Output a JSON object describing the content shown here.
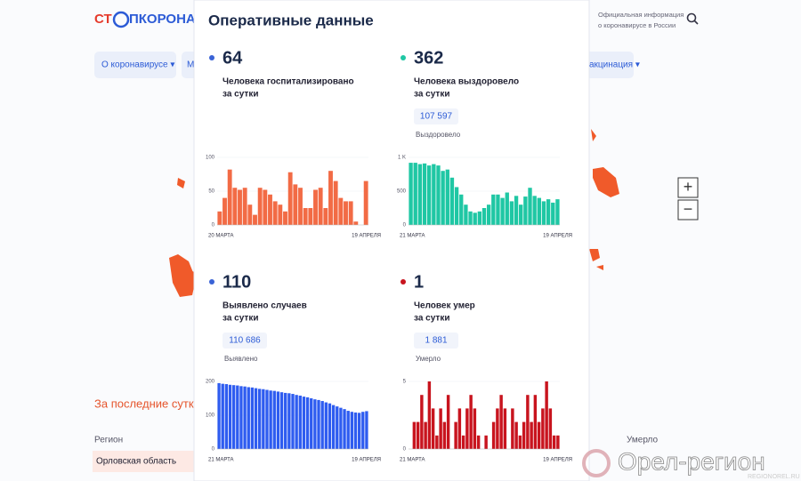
{
  "header": {
    "logo_left": "СТ",
    "logo_right": "ПКОРОНАВИ",
    "info_lines": [
      "Официальная информация",
      "о коронавирусе в России"
    ]
  },
  "nav": [
    "О коронавирусе ▾",
    "М",
    "акцинация ▾"
  ],
  "zoom": [
    "+",
    "−"
  ],
  "background_table": {
    "title": "За последние сутки",
    "col_region": "Регион",
    "col_died": "Умерло",
    "row": "Орловская область"
  },
  "watermark": {
    "name": "Орел-регион",
    "site": "REGIONOREL.RU"
  },
  "modal": {
    "title": "Оперативные данные",
    "cards": [
      {
        "value": "64",
        "bullet_color": "#3a63d6",
        "label_lines": [
          "Человека госпитализировано",
          "за сутки"
        ],
        "chart": {
          "type": "bar",
          "color": "#f26b45",
          "ylim": [
            0,
            100
          ],
          "yticks": [
            0,
            50,
            100
          ],
          "x_start": "20 МАРТА",
          "x_end": "19 АПРЕЛЯ",
          "values": [
            20,
            40,
            82,
            55,
            52,
            55,
            30,
            15,
            55,
            52,
            45,
            35,
            30,
            20,
            78,
            60,
            55,
            25,
            25,
            52,
            55,
            25,
            80,
            65,
            40,
            35,
            35,
            5,
            0,
            65
          ]
        }
      },
      {
        "value": "362",
        "bullet_color": "#1fc7a4",
        "label_lines": [
          "Человека выздоровело",
          "за сутки"
        ],
        "total": "107 597",
        "total_label": "Выздоровело",
        "chart": {
          "type": "bar",
          "color": "#1fc7a4",
          "ylim": [
            0,
            1000
          ],
          "yticks": [
            0,
            500,
            {
              "value": 1000,
              "label": "1 K"
            }
          ],
          "x_start": "21 МАРТА",
          "x_end": "19 АПРЕЛЯ",
          "values": [
            920,
            920,
            900,
            910,
            880,
            900,
            880,
            800,
            820,
            700,
            560,
            450,
            300,
            200,
            180,
            200,
            250,
            300,
            450,
            450,
            400,
            480,
            350,
            430,
            300,
            420,
            550,
            430,
            400,
            350,
            380,
            330,
            380
          ]
        }
      },
      {
        "value": "110",
        "bullet_color": "#3a63d6",
        "label_lines": [
          "Выявлено случаев",
          "за сутки"
        ],
        "total": "110 686",
        "total_label": "Выявлено",
        "chart": {
          "type": "bar",
          "color": "#2e5cf0",
          "ylim": [
            0,
            200
          ],
          "yticks": [
            0,
            100,
            200
          ],
          "x_start": "21 МАРТА",
          "x_end": "19 АПРЕЛЯ",
          "values": [
            195,
            193,
            192,
            190,
            189,
            188,
            186,
            185,
            183,
            182,
            180,
            178,
            177,
            175,
            173,
            172,
            170,
            168,
            166,
            165,
            163,
            160,
            158,
            155,
            153,
            150,
            147,
            145,
            142,
            138,
            135,
            130,
            126,
            122,
            118,
            113,
            110,
            108,
            107,
            110,
            112
          ]
        }
      },
      {
        "value": "1",
        "bullet_color": "#c8141e",
        "label_lines": [
          "Человек умер",
          "за сутки"
        ],
        "total": "1 881",
        "total_label": "Умерло",
        "chart": {
          "type": "bar",
          "color": "#c8141e",
          "ylim": [
            0,
            5
          ],
          "yticks": [
            0,
            5
          ],
          "x_start": "21 МАРТА",
          "x_end": "19 АПРЕЛЯ",
          "values": [
            0,
            2,
            2,
            4,
            2,
            5,
            3,
            1,
            3,
            2,
            4,
            0,
            2,
            3,
            1,
            3,
            4,
            3,
            1,
            0,
            1,
            0,
            2,
            3,
            4,
            3,
            0,
            3,
            2,
            1,
            2,
            4,
            2,
            4,
            2,
            3,
            5,
            3,
            1,
            1
          ]
        }
      }
    ]
  }
}
